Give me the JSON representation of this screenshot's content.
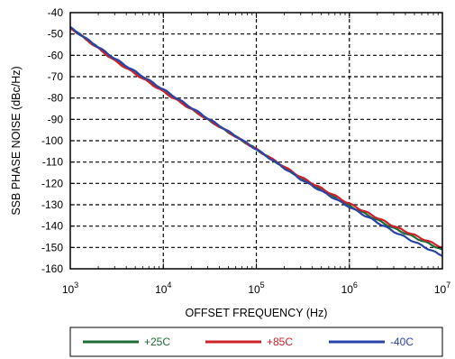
{
  "chart_data": {
    "type": "line",
    "xlabel": "OFFSET FREQUENCY (Hz)",
    "ylabel": "SSB PHASE NOISE (dBc/Hz)",
    "x_scale": "log",
    "xlim": [
      1000,
      10000000
    ],
    "ylim": [
      -160,
      -40
    ],
    "grid": true,
    "legend_position": "bottom",
    "y_ticks": [
      -40,
      -50,
      -60,
      -70,
      -80,
      -90,
      -100,
      -110,
      -120,
      -130,
      -140,
      -150,
      -160
    ],
    "x_ticks": [
      {
        "base": "10",
        "exp": "3",
        "value": 1000
      },
      {
        "base": "10",
        "exp": "4",
        "value": 10000
      },
      {
        "base": "10",
        "exp": "5",
        "value": 100000
      },
      {
        "base": "10",
        "exp": "6",
        "value": 1000000
      },
      {
        "base": "10",
        "exp": "7",
        "value": 10000000
      }
    ],
    "x": [
      1000,
      3000,
      10000,
      30000,
      100000,
      300000,
      1000000,
      3000000,
      10000000
    ],
    "series": [
      {
        "name": "+25C",
        "color": "#1e6b35",
        "values": [
          -47,
          -62,
          -76.5,
          -90,
          -104,
          -117.5,
          -130.5,
          -141,
          -151
        ]
      },
      {
        "name": "+85C",
        "color": "#cc2229",
        "values": [
          -47,
          -62.5,
          -77,
          -90,
          -104,
          -117,
          -129.5,
          -140,
          -150
        ]
      },
      {
        "name": "-40C",
        "color": "#2a43a8",
        "values": [
          -47,
          -61.5,
          -76,
          -89.5,
          -104,
          -118,
          -131,
          -142.5,
          -154
        ]
      }
    ]
  }
}
